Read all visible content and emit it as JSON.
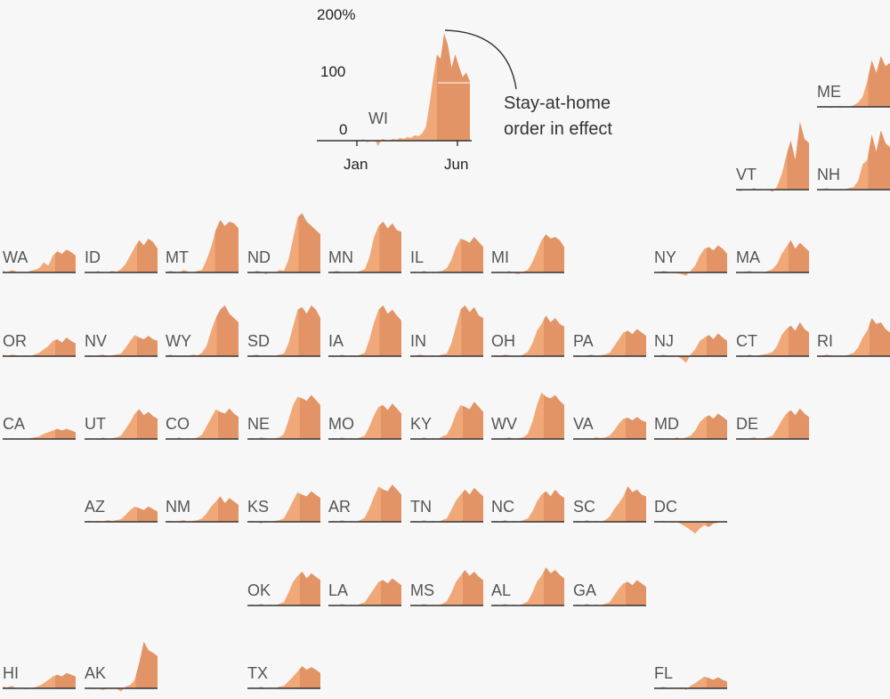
{
  "chart_data": {
    "type": "area",
    "subtype": "small-multiples tile map",
    "title": "",
    "x_range": [
      "Jan",
      "Jun"
    ],
    "unit": "%",
    "key_example": {
      "state": "WI",
      "y_ticks": [
        "200%",
        "100",
        "0"
      ],
      "x_ticks": [
        "Jan",
        "Jun"
      ],
      "annotation": [
        "Stay-at-home",
        "order in effect"
      ],
      "stay_at_home_start": 0.72
    },
    "colors": {
      "area": "#f0a878",
      "shaded": "#e29466",
      "baseline": "#333333",
      "background": "#f7f7f7"
    },
    "states": [
      {
        "abbr": "ME",
        "shape": [
          0,
          0,
          1,
          -1,
          0,
          1,
          0,
          0,
          2,
          5,
          12,
          30,
          55,
          40,
          60,
          48,
          52
        ],
        "shade_from": 0.7
      },
      {
        "abbr": "VT",
        "shape": [
          0,
          -2,
          1,
          0,
          2,
          -1,
          0,
          1,
          -3,
          4,
          18,
          40,
          58,
          35,
          80,
          60,
          55
        ],
        "shade_from": 0.7
      },
      {
        "abbr": "NH",
        "shape": [
          1,
          0,
          2,
          0,
          -1,
          1,
          0,
          2,
          3,
          10,
          30,
          35,
          65,
          45,
          70,
          55,
          50
        ],
        "shade_from": 0.7
      },
      {
        "abbr": "WA",
        "shape": [
          2,
          0,
          3,
          1,
          0,
          -1,
          2,
          3,
          5,
          12,
          8,
          20,
          25,
          22,
          27,
          24,
          20
        ],
        "shade_from": 0.72
      },
      {
        "abbr": "ID",
        "shape": [
          0,
          1,
          0,
          2,
          -1,
          0,
          2,
          1,
          4,
          10,
          20,
          30,
          38,
          32,
          40,
          36,
          28
        ],
        "shade_from": 0.72
      },
      {
        "abbr": "MT",
        "shape": [
          0,
          2,
          1,
          0,
          3,
          1,
          0,
          2,
          3,
          15,
          30,
          50,
          62,
          55,
          60,
          58,
          52
        ],
        "shade_from": 0.68
      },
      {
        "abbr": "ND",
        "shape": [
          0,
          -1,
          2,
          1,
          -2,
          0,
          -1,
          3,
          2,
          15,
          40,
          65,
          70,
          60,
          55,
          50,
          45
        ],
        "shade_from": 0.7
      },
      {
        "abbr": "MN",
        "shape": [
          0,
          1,
          2,
          0,
          1,
          -1,
          0,
          2,
          4,
          18,
          42,
          55,
          60,
          52,
          58,
          50,
          48
        ],
        "shade_from": 0.7
      },
      {
        "abbr": "IL",
        "shape": [
          0,
          1,
          0,
          2,
          0,
          -1,
          1,
          2,
          5,
          15,
          30,
          40,
          38,
          35,
          42,
          36,
          30
        ],
        "shade_from": 0.7
      },
      {
        "abbr": "MI",
        "shape": [
          0,
          0,
          1,
          0,
          2,
          -1,
          -2,
          1,
          3,
          12,
          25,
          38,
          45,
          40,
          42,
          38,
          30
        ],
        "shade_from": 0.72
      },
      {
        "abbr": "NY",
        "shape": [
          1,
          0,
          2,
          1,
          0,
          -1,
          -2,
          -4,
          2,
          8,
          20,
          28,
          30,
          26,
          32,
          28,
          22
        ],
        "shade_from": 0.72
      },
      {
        "abbr": "MA",
        "shape": [
          1,
          0,
          1,
          2,
          0,
          1,
          0,
          2,
          4,
          10,
          22,
          30,
          38,
          28,
          35,
          30,
          25
        ],
        "shade_from": 0.72
      },
      {
        "abbr": "OR",
        "shape": [
          2,
          0,
          2,
          1,
          0,
          1,
          0,
          2,
          4,
          8,
          12,
          18,
          20,
          16,
          22,
          18,
          15
        ],
        "shade_from": 0.72
      },
      {
        "abbr": "NV",
        "shape": [
          0,
          1,
          0,
          1,
          2,
          0,
          1,
          2,
          3,
          10,
          18,
          25,
          22,
          20,
          24,
          20,
          18
        ],
        "shade_from": 0.72
      },
      {
        "abbr": "WY",
        "shape": [
          0,
          2,
          0,
          -1,
          1,
          0,
          2,
          1,
          4,
          12,
          30,
          45,
          55,
          60,
          50,
          45,
          40
        ],
        "shade_from": 0.7
      },
      {
        "abbr": "SD",
        "shape": [
          0,
          1,
          2,
          0,
          1,
          -1,
          0,
          2,
          3,
          15,
          35,
          55,
          58,
          50,
          60,
          55,
          45
        ],
        "shade_from": 0.7
      },
      {
        "abbr": "IA",
        "shape": [
          0,
          1,
          0,
          2,
          0,
          1,
          -1,
          2,
          4,
          20,
          40,
          55,
          60,
          50,
          55,
          48,
          42
        ],
        "shade_from": 0.7
      },
      {
        "abbr": "IN",
        "shape": [
          0,
          0,
          2,
          1,
          0,
          1,
          0,
          2,
          3,
          15,
          35,
          55,
          60,
          52,
          58,
          48,
          45
        ],
        "shade_from": 0.7
      },
      {
        "abbr": "OH",
        "shape": [
          0,
          1,
          0,
          2,
          1,
          0,
          -1,
          2,
          5,
          15,
          30,
          38,
          48,
          40,
          45,
          38,
          35
        ],
        "shade_from": 0.72
      },
      {
        "abbr": "PA",
        "shape": [
          0,
          1,
          0,
          1,
          2,
          0,
          1,
          2,
          4,
          12,
          20,
          28,
          30,
          26,
          32,
          28,
          24
        ],
        "shade_from": 0.72
      },
      {
        "abbr": "NJ",
        "shape": [
          1,
          0,
          2,
          0,
          -1,
          0,
          -3,
          -8,
          2,
          8,
          18,
          22,
          25,
          20,
          27,
          22,
          18
        ],
        "shade_from": 0.72
      },
      {
        "abbr": "CT",
        "shape": [
          0,
          1,
          0,
          2,
          0,
          1,
          2,
          3,
          5,
          12,
          25,
          32,
          36,
          30,
          40,
          32,
          28
        ],
        "shade_from": 0.72
      },
      {
        "abbr": "RI",
        "shape": [
          1,
          0,
          2,
          1,
          0,
          1,
          0,
          2,
          4,
          10,
          22,
          30,
          45,
          38,
          40,
          32,
          28
        ],
        "shade_from": 0.72
      },
      {
        "abbr": "CA",
        "shape": [
          1,
          0,
          1,
          0,
          -1,
          0,
          1,
          2,
          3,
          6,
          8,
          10,
          12,
          10,
          12,
          10,
          8
        ],
        "shade_from": 0.72
      },
      {
        "abbr": "UT",
        "shape": [
          0,
          1,
          0,
          -1,
          2,
          0,
          1,
          2,
          4,
          12,
          20,
          30,
          35,
          28,
          32,
          27,
          24
        ],
        "shade_from": 0.72
      },
      {
        "abbr": "CO",
        "shape": [
          0,
          1,
          0,
          2,
          0,
          1,
          0,
          2,
          5,
          15,
          25,
          35,
          32,
          30,
          36,
          30,
          26
        ],
        "shade_from": 0.72
      },
      {
        "abbr": "NE",
        "shape": [
          0,
          1,
          0,
          2,
          1,
          0,
          1,
          2,
          6,
          22,
          40,
          50,
          48,
          45,
          52,
          46,
          40
        ],
        "shade_from": 0.72
      },
      {
        "abbr": "MO",
        "shape": [
          0,
          1,
          0,
          2,
          0,
          1,
          0,
          2,
          4,
          15,
          28,
          38,
          40,
          34,
          42,
          36,
          30
        ],
        "shade_from": 0.72
      },
      {
        "abbr": "KY",
        "shape": [
          0,
          1,
          0,
          2,
          0,
          1,
          0,
          3,
          5,
          15,
          30,
          40,
          38,
          35,
          44,
          38,
          32
        ],
        "shade_from": 0.72
      },
      {
        "abbr": "WV",
        "shape": [
          0,
          1,
          0,
          1,
          2,
          0,
          1,
          2,
          6,
          20,
          40,
          55,
          50,
          48,
          52,
          45,
          40
        ],
        "shade_from": 0.72
      },
      {
        "abbr": "VA",
        "shape": [
          0,
          1,
          0,
          1,
          0,
          2,
          1,
          2,
          4,
          10,
          18,
          24,
          25,
          22,
          26,
          22,
          20
        ],
        "shade_from": 0.72
      },
      {
        "abbr": "MD",
        "shape": [
          0,
          1,
          0,
          1,
          0,
          2,
          0,
          2,
          4,
          10,
          20,
          25,
          28,
          24,
          30,
          26,
          22
        ],
        "shade_from": 0.72
      },
      {
        "abbr": "DE",
        "shape": [
          0,
          1,
          0,
          1,
          2,
          0,
          1,
          2,
          4,
          12,
          22,
          30,
          34,
          28,
          36,
          30,
          26
        ],
        "shade_from": 0.72
      },
      {
        "abbr": "AZ",
        "shape": [
          0,
          1,
          0,
          1,
          0,
          2,
          1,
          2,
          3,
          8,
          14,
          18,
          16,
          14,
          18,
          15,
          12
        ],
        "shade_from": 0.72
      },
      {
        "abbr": "NM",
        "shape": [
          0,
          1,
          0,
          1,
          2,
          0,
          1,
          2,
          4,
          10,
          18,
          24,
          30,
          22,
          28,
          24,
          20
        ],
        "shade_from": 0.72
      },
      {
        "abbr": "KS",
        "shape": [
          0,
          1,
          0,
          -2,
          1,
          0,
          1,
          2,
          4,
          14,
          25,
          35,
          32,
          30,
          36,
          32,
          28
        ],
        "shade_from": 0.72
      },
      {
        "abbr": "AR",
        "shape": [
          0,
          1,
          0,
          2,
          0,
          1,
          0,
          2,
          5,
          16,
          30,
          42,
          38,
          36,
          44,
          38,
          32
        ],
        "shade_from": 0.72
      },
      {
        "abbr": "TN",
        "shape": [
          0,
          1,
          0,
          2,
          0,
          1,
          0,
          2,
          4,
          14,
          25,
          32,
          38,
          32,
          40,
          35,
          30
        ],
        "shade_from": 0.72
      },
      {
        "abbr": "NC",
        "shape": [
          0,
          1,
          0,
          2,
          0,
          1,
          0,
          2,
          4,
          12,
          24,
          32,
          36,
          30,
          38,
          32,
          28
        ],
        "shade_from": 0.72
      },
      {
        "abbr": "SC",
        "shape": [
          0,
          1,
          0,
          2,
          0,
          1,
          0,
          2,
          6,
          15,
          22,
          30,
          42,
          35,
          38,
          32,
          30
        ],
        "shade_from": 0.72
      },
      {
        "abbr": "DC",
        "shape": [
          0,
          0,
          1,
          0,
          -1,
          0,
          -3,
          -6,
          -10,
          -14,
          -8,
          -4,
          -6,
          -2,
          -1,
          0,
          -1
        ],
        "shade_from": 0.72
      },
      {
        "abbr": "OK",
        "shape": [
          0,
          1,
          0,
          2,
          0,
          1,
          0,
          2,
          4,
          15,
          28,
          35,
          40,
          32,
          38,
          34,
          30
        ],
        "shade_from": 0.72
      },
      {
        "abbr": "LA",
        "shape": [
          0,
          1,
          0,
          2,
          0,
          1,
          0,
          2,
          4,
          12,
          20,
          28,
          30,
          26,
          32,
          28,
          24
        ],
        "shade_from": 0.72
      },
      {
        "abbr": "MS",
        "shape": [
          0,
          1,
          0,
          2,
          0,
          1,
          0,
          2,
          5,
          15,
          28,
          35,
          42,
          35,
          40,
          34,
          30
        ],
        "shade_from": 0.72
      },
      {
        "abbr": "AL",
        "shape": [
          0,
          1,
          0,
          2,
          0,
          1,
          0,
          2,
          5,
          15,
          28,
          35,
          45,
          38,
          42,
          36,
          32
        ],
        "shade_from": 0.72
      },
      {
        "abbr": "GA",
        "shape": [
          0,
          1,
          0,
          2,
          0,
          1,
          0,
          2,
          4,
          12,
          20,
          26,
          28,
          24,
          30,
          26,
          22
        ],
        "shade_from": 0.72
      },
      {
        "abbr": "HI",
        "shape": [
          2,
          1,
          3,
          0,
          1,
          -1,
          0,
          1,
          3,
          6,
          10,
          14,
          16,
          14,
          18,
          16,
          14
        ],
        "shade_from": 0.72
      },
      {
        "abbr": "AK",
        "shape": [
          0,
          1,
          -1,
          0,
          -2,
          0,
          1,
          0,
          -4,
          2,
          4,
          10,
          30,
          55,
          45,
          42,
          38
        ],
        "shade_from": 0.7
      },
      {
        "abbr": "TX",
        "shape": [
          0,
          1,
          0,
          2,
          0,
          1,
          0,
          2,
          3,
          8,
          14,
          20,
          26,
          22,
          25,
          22,
          18
        ],
        "shade_from": 0.72
      },
      {
        "abbr": "FL",
        "shape": [
          1,
          0,
          2,
          0,
          1,
          0,
          1,
          -2,
          3,
          6,
          10,
          14,
          12,
          10,
          13,
          10,
          8
        ],
        "shade_from": 0.72
      }
    ]
  }
}
